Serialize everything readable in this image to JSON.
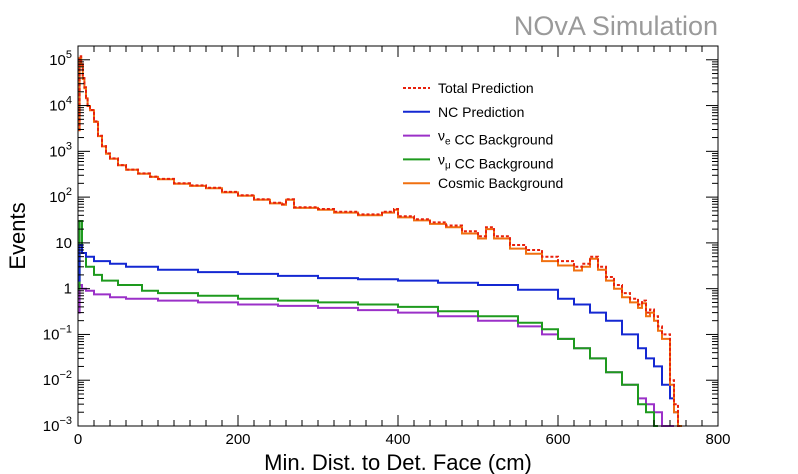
{
  "watermark": "NOvA Simulation",
  "chart_data": {
    "type": "line",
    "title": "",
    "xlabel": "Min. Dist. to Det. Face (cm)",
    "ylabel": "Events",
    "xlim": [
      0,
      800
    ],
    "ylim": [
      0.001,
      200000
    ],
    "yscale": "log",
    "x_ticks": [
      0,
      200,
      400,
      600,
      800
    ],
    "y_tick_labels": [
      {
        "value": 0.001,
        "base": "10",
        "exp": "−3"
      },
      {
        "value": 0.01,
        "base": "10",
        "exp": "−2"
      },
      {
        "value": 0.1,
        "base": "10",
        "exp": "−1"
      },
      {
        "value": 1,
        "base": "1",
        "exp": ""
      },
      {
        "value": 10,
        "base": "10",
        "exp": ""
      },
      {
        "value": 100,
        "base": "10",
        "exp": "2"
      },
      {
        "value": 1000,
        "base": "10",
        "exp": "3"
      },
      {
        "value": 10000,
        "base": "10",
        "exp": "4"
      },
      {
        "value": 100000,
        "base": "10",
        "exp": "5"
      }
    ],
    "grid": false,
    "legend_position": "top-right",
    "series": [
      {
        "name": "Total Prediction",
        "legend_parts": [
          {
            "text": "Total Prediction"
          }
        ],
        "color": "#e8200c",
        "style": "dashed",
        "x": [
          0,
          2,
          4,
          6,
          8,
          10,
          12,
          15,
          20,
          25,
          30,
          35,
          40,
          50,
          60,
          75,
          90,
          100,
          120,
          140,
          160,
          180,
          200,
          220,
          240,
          255,
          260,
          270,
          300,
          320,
          350,
          380,
          395,
          400,
          420,
          440,
          460,
          480,
          500,
          510,
          520,
          540,
          560,
          580,
          600,
          620,
          630,
          640,
          650,
          660,
          670,
          680,
          690,
          700,
          705,
          710,
          715,
          720,
          725,
          730,
          735,
          740,
          745,
          750
        ],
        "y": [
          3000,
          120000,
          80000,
          40000,
          25000,
          15000,
          10000,
          8000,
          4500,
          2200,
          1300,
          900,
          700,
          500,
          400,
          330,
          280,
          250,
          200,
          180,
          160,
          130,
          110,
          90,
          75,
          70,
          90,
          60,
          55,
          48,
          42,
          48,
          55,
          38,
          33,
          28,
          24,
          18,
          14,
          22,
          14,
          9,
          7,
          5,
          4,
          3,
          3.5,
          5,
          3,
          1.8,
          1.2,
          0.8,
          0.6,
          0.45,
          0.55,
          0.3,
          0.35,
          0.25,
          0.15,
          0.1,
          0.1,
          0.01,
          0.003,
          0.001
        ]
      },
      {
        "name": "NC Prediction",
        "legend_parts": [
          {
            "text": "NC Prediction"
          }
        ],
        "color": "#1428d2",
        "style": "solid",
        "x": [
          0,
          2,
          5,
          10,
          20,
          40,
          60,
          100,
          150,
          200,
          250,
          300,
          350,
          400,
          450,
          500,
          550,
          600,
          620,
          640,
          660,
          680,
          700,
          710,
          720,
          730,
          740,
          745,
          750
        ],
        "y": [
          1.5,
          9,
          6,
          5,
          4,
          3.5,
          3,
          2.6,
          2.3,
          2.1,
          1.9,
          1.7,
          1.6,
          1.5,
          1.35,
          1.2,
          0.95,
          0.6,
          0.45,
          0.3,
          0.2,
          0.1,
          0.05,
          0.03,
          0.02,
          0.008,
          0.004,
          0.002,
          0.001
        ]
      },
      {
        "name": "νe CC Background",
        "legend_parts": [
          {
            "text": "ν"
          },
          {
            "text": "e",
            "sub": true
          },
          {
            "text": " CC Background"
          }
        ],
        "color": "#9b30c8",
        "style": "solid",
        "x": [
          0,
          2,
          5,
          10,
          20,
          40,
          60,
          100,
          150,
          200,
          250,
          300,
          350,
          400,
          450,
          500,
          550,
          580,
          600,
          620,
          640,
          660,
          680,
          700,
          710,
          720,
          730,
          740
        ],
        "y": [
          0.3,
          1.2,
          1.0,
          0.9,
          0.75,
          0.65,
          0.6,
          0.55,
          0.5,
          0.45,
          0.42,
          0.38,
          0.34,
          0.3,
          0.25,
          0.2,
          0.15,
          0.1,
          0.08,
          0.05,
          0.03,
          0.015,
          0.008,
          0.004,
          0.003,
          0.002,
          0.001,
          0.001
        ]
      },
      {
        "name": "νμ CC Background",
        "legend_parts": [
          {
            "text": "ν"
          },
          {
            "text": "μ",
            "sub": true
          },
          {
            "text": " CC Background"
          }
        ],
        "color": "#1e9a1e",
        "style": "solid",
        "x": [
          0,
          2,
          5,
          10,
          20,
          30,
          50,
          80,
          100,
          150,
          200,
          250,
          300,
          350,
          400,
          450,
          500,
          550,
          580,
          600,
          620,
          640,
          660,
          680,
          700,
          710,
          720
        ],
        "y": [
          1,
          30,
          6,
          3,
          2,
          1.5,
          1.2,
          0.9,
          0.8,
          0.7,
          0.6,
          0.55,
          0.5,
          0.45,
          0.4,
          0.32,
          0.25,
          0.18,
          0.13,
          0.08,
          0.05,
          0.03,
          0.015,
          0.008,
          0.003,
          0.002,
          0.001
        ]
      },
      {
        "name": "Cosmic Background",
        "legend_parts": [
          {
            "text": "Cosmic Background"
          }
        ],
        "color": "#f07010",
        "style": "solid",
        "x": [
          0,
          2,
          4,
          6,
          8,
          10,
          12,
          15,
          20,
          25,
          30,
          35,
          40,
          50,
          60,
          75,
          90,
          100,
          120,
          140,
          160,
          180,
          200,
          220,
          240,
          255,
          260,
          270,
          300,
          320,
          350,
          380,
          395,
          400,
          420,
          440,
          460,
          480,
          500,
          510,
          520,
          540,
          560,
          580,
          600,
          620,
          630,
          640,
          650,
          660,
          670,
          680,
          690,
          700,
          705,
          710,
          715,
          720,
          725,
          730,
          735,
          740,
          745,
          750
        ],
        "y": [
          2900,
          110000,
          75000,
          38000,
          24000,
          14500,
          9800,
          7900,
          4400,
          2150,
          1280,
          890,
          690,
          495,
          395,
          325,
          276,
          246,
          196,
          176,
          156,
          127,
          107,
          88,
          73,
          68,
          88,
          58,
          53,
          46,
          40,
          46,
          53,
          36,
          31,
          26,
          22,
          16,
          12.5,
          20,
          12.5,
          7.5,
          5.8,
          4,
          3.2,
          2.5,
          3,
          4.5,
          2.6,
          1.5,
          1.0,
          0.65,
          0.5,
          0.38,
          0.48,
          0.25,
          0.3,
          0.2,
          0.12,
          0.08,
          0.08,
          0.008,
          0.002,
          0.001
        ]
      }
    ]
  }
}
